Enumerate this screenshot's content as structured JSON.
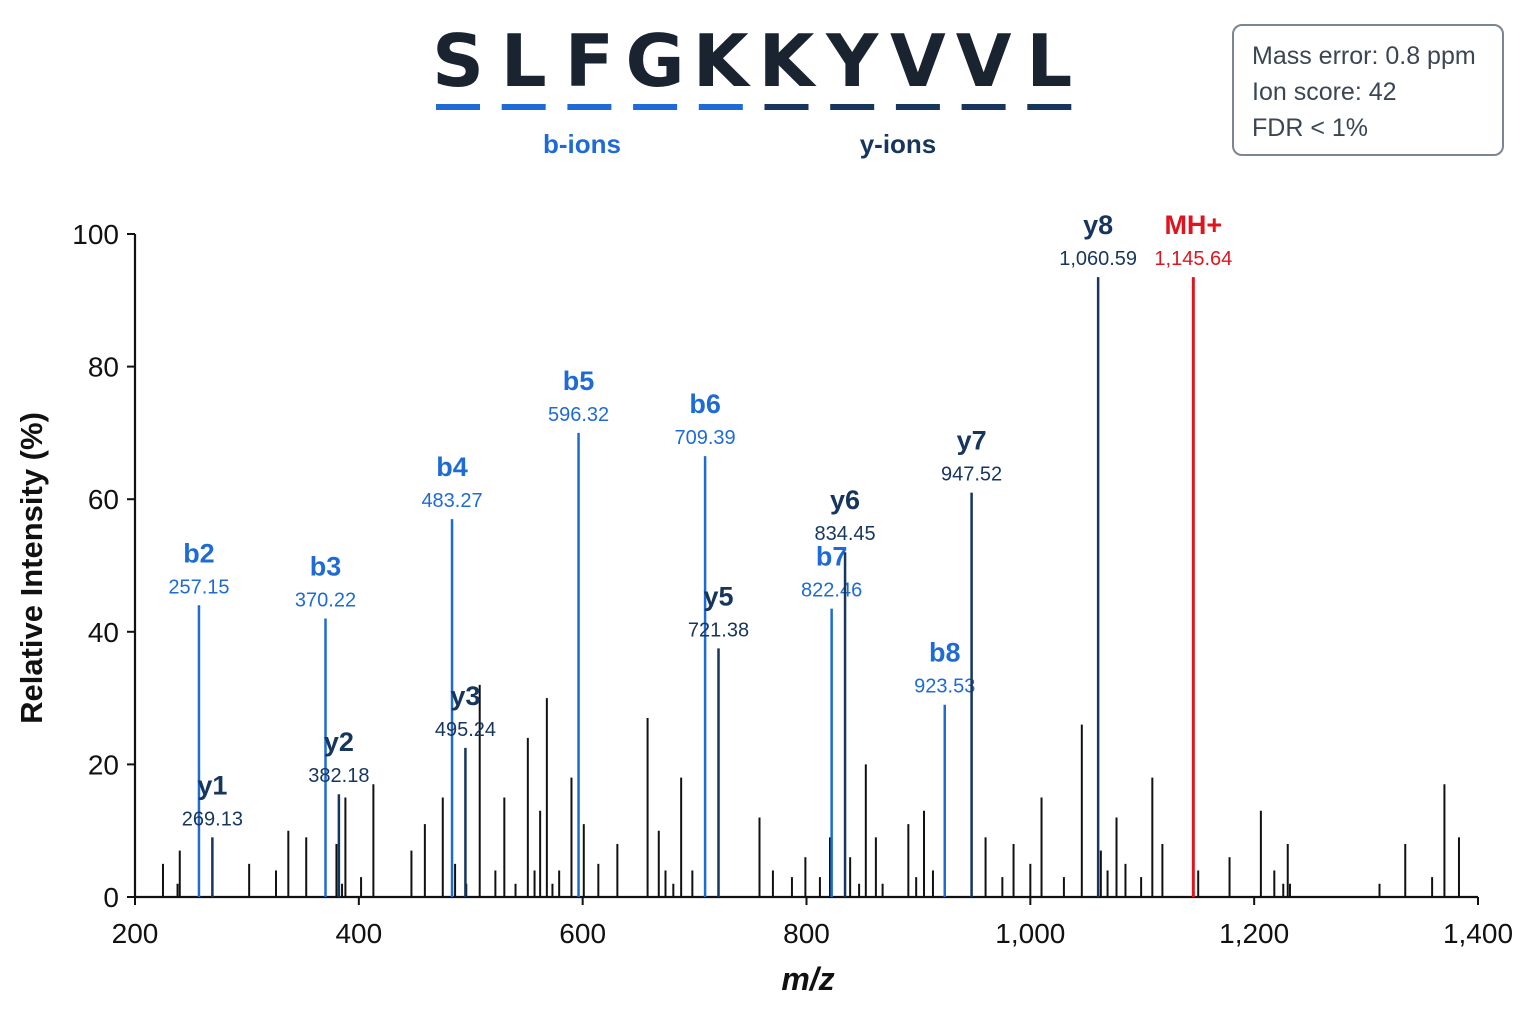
{
  "peptide": {
    "sequence": [
      "S",
      "L",
      "F",
      "G",
      "K",
      "K",
      "Y",
      "V",
      "V",
      "L"
    ],
    "b_label": "b-ions",
    "y_label": "y-ions",
    "b_color": "#1f6bd6",
    "y_color": "#16365e"
  },
  "info": {
    "mass_error": "Mass error: 0.8 ppm",
    "ion_score": "Ion score: 42",
    "fdr": "FDR < 1%"
  },
  "chart_data": {
    "type": "bar",
    "xlabel": "m/z",
    "ylabel": "Relative Intensity (%)",
    "xlim": [
      200,
      1400
    ],
    "ylim": [
      0,
      100
    ],
    "xticks": [
      200,
      400,
      600,
      800,
      1000,
      1200,
      1400
    ],
    "xtick_labels": [
      "200",
      "400",
      "600",
      "800",
      "1,000",
      "1,200",
      "1,400"
    ],
    "yticks": [
      0,
      20,
      40,
      60,
      80,
      100
    ],
    "grid": false,
    "colors": {
      "b": "#1f6bd6",
      "y": "#16365e",
      "precursor": "#e0141e",
      "noise": "#111111"
    },
    "annotated_peaks": [
      {
        "ion": "b2",
        "label": "257.15",
        "type": "b",
        "x": 257.15,
        "intensity": 44
      },
      {
        "ion": "b3",
        "label": "370.22",
        "type": "b",
        "x": 370.22,
        "intensity": 42
      },
      {
        "ion": "b4",
        "label": "483.27",
        "type": "b",
        "x": 483.27,
        "intensity": 57
      },
      {
        "ion": "b5",
        "label": "596.32",
        "type": "b",
        "x": 596.32,
        "intensity": 70
      },
      {
        "ion": "b6",
        "label": "709.39",
        "type": "b",
        "x": 709.39,
        "intensity": 66.5
      },
      {
        "ion": "b7",
        "label": "822.46",
        "type": "b",
        "x": 822.46,
        "intensity": 43.5
      },
      {
        "ion": "b8",
        "label": "923.53",
        "type": "b",
        "x": 923.53,
        "intensity": 29
      },
      {
        "ion": "y1",
        "label": "269.13",
        "type": "y",
        "x": 269.13,
        "intensity": 9
      },
      {
        "ion": "y2",
        "label": "382.18",
        "type": "y",
        "x": 382.18,
        "intensity": 15.5
      },
      {
        "ion": "y3",
        "label": "495.24",
        "type": "y",
        "x": 495.24,
        "intensity": 22.5
      },
      {
        "ion": "y5",
        "label": "721.38",
        "type": "y",
        "x": 721.38,
        "intensity": 37.5
      },
      {
        "ion": "y6",
        "label": "834.45",
        "type": "y",
        "x": 834.45,
        "intensity": 52
      },
      {
        "ion": "y7",
        "label": "947.52",
        "type": "y",
        "x": 947.52,
        "intensity": 61
      },
      {
        "ion": "y8",
        "label": "1,060.59",
        "type": "y",
        "x": 1060.59,
        "intensity": 93.5
      },
      {
        "ion": "MH+",
        "label": "1,145.64",
        "type": "precursor",
        "x": 1145.64,
        "intensity": 93.5
      }
    ],
    "unlabeled_peaks": [
      [
        225,
        5
      ],
      [
        238,
        2
      ],
      [
        240,
        7
      ],
      [
        302,
        5
      ],
      [
        326,
        4
      ],
      [
        337,
        10
      ],
      [
        353,
        9
      ],
      [
        380,
        8
      ],
      [
        385,
        2
      ],
      [
        388,
        15
      ],
      [
        402,
        3
      ],
      [
        413,
        17
      ],
      [
        447,
        7
      ],
      [
        459,
        11
      ],
      [
        475,
        15
      ],
      [
        486,
        5
      ],
      [
        496,
        2
      ],
      [
        508,
        32
      ],
      [
        522,
        4
      ],
      [
        530,
        15
      ],
      [
        540,
        2
      ],
      [
        551,
        24
      ],
      [
        557,
        4
      ],
      [
        562,
        13
      ],
      [
        568,
        30
      ],
      [
        573,
        2
      ],
      [
        579,
        4
      ],
      [
        590,
        18
      ],
      [
        601,
        11
      ],
      [
        614,
        5
      ],
      [
        631,
        8
      ],
      [
        658,
        27
      ],
      [
        668,
        10
      ],
      [
        674,
        4
      ],
      [
        681,
        2
      ],
      [
        688,
        18
      ],
      [
        698,
        4
      ],
      [
        758,
        12
      ],
      [
        770,
        4
      ],
      [
        787,
        3
      ],
      [
        799,
        6
      ],
      [
        812,
        3
      ],
      [
        821,
        9
      ],
      [
        839,
        6
      ],
      [
        847,
        2
      ],
      [
        853,
        20
      ],
      [
        862,
        9
      ],
      [
        868,
        2
      ],
      [
        891,
        11
      ],
      [
        898,
        3
      ],
      [
        905,
        13
      ],
      [
        913,
        4
      ],
      [
        960,
        9
      ],
      [
        975,
        3
      ],
      [
        985,
        8
      ],
      [
        1000,
        5
      ],
      [
        1010,
        15
      ],
      [
        1030,
        3
      ],
      [
        1046,
        26
      ],
      [
        1063,
        7
      ],
      [
        1069,
        4
      ],
      [
        1077,
        12
      ],
      [
        1085,
        5
      ],
      [
        1099,
        3
      ],
      [
        1109,
        18
      ],
      [
        1118,
        8
      ],
      [
        1150,
        4
      ],
      [
        1178,
        6
      ],
      [
        1206,
        13
      ],
      [
        1218,
        4
      ],
      [
        1226,
        2
      ],
      [
        1230,
        8
      ],
      [
        1232,
        2
      ],
      [
        1312,
        2
      ],
      [
        1335,
        8
      ],
      [
        1359,
        3
      ],
      [
        1370,
        17
      ],
      [
        1383,
        9
      ]
    ]
  }
}
